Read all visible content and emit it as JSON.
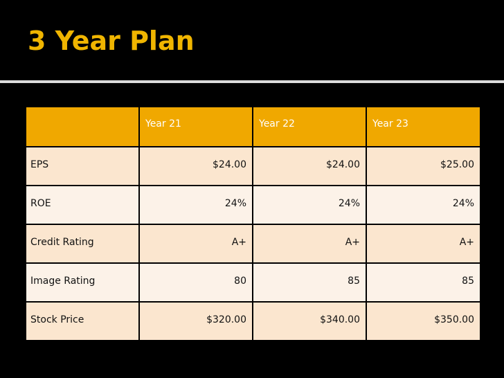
{
  "slide": {
    "title": "3 Year Plan"
  },
  "table": {
    "headers": [
      "",
      "Year 21",
      "Year 22",
      "Year 23"
    ],
    "rows": [
      {
        "label": "EPS",
        "values": [
          "$24.00",
          "$24.00",
          "$25.00"
        ]
      },
      {
        "label": "ROE",
        "values": [
          "24%",
          "24%",
          "24%"
        ]
      },
      {
        "label": "Credit Rating",
        "values": [
          "A+",
          "A+",
          "A+"
        ]
      },
      {
        "label": "Image Rating",
        "values": [
          "80",
          "85",
          "85"
        ]
      },
      {
        "label": "Stock Price",
        "values": [
          "$320.00",
          "$340.00",
          "$350.00"
        ]
      }
    ]
  },
  "colors": {
    "accent": "#f0b500",
    "header_bg": "#f0a800",
    "row_dark": "#fbe6cf",
    "row_light": "#fcf2e8"
  }
}
